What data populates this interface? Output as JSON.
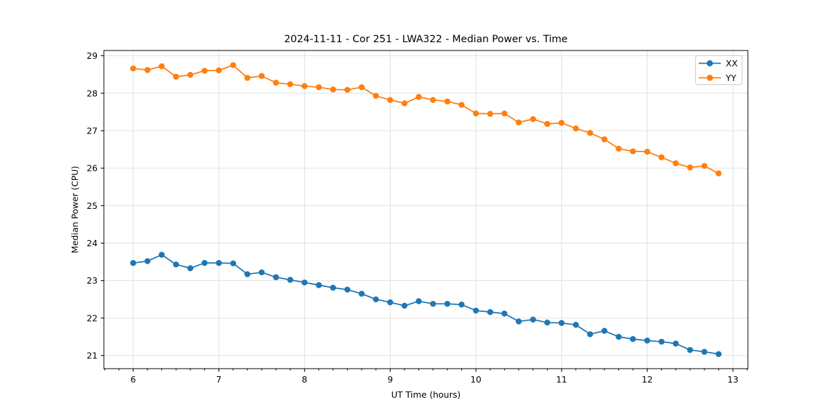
{
  "page": {
    "background": "#ffffff",
    "text_color": "#000000",
    "grid_color": "#e0e0e0",
    "spine_color": "#000000",
    "legend_border_color": "#cccccc"
  },
  "chart_data": {
    "type": "line",
    "title": "2024-11-11 - Cor 251 - LWA322 - Median Power vs. Time",
    "xlabel": "UT Time (hours)",
    "ylabel": "Median Power (CPU)",
    "xlim": [
      5.658,
      13.175
    ],
    "ylim": [
      20.65,
      29.14
    ],
    "x_ticks": [
      6,
      7,
      8,
      9,
      10,
      11,
      12,
      13
    ],
    "y_ticks": [
      21,
      22,
      23,
      24,
      25,
      26,
      27,
      28,
      29
    ],
    "x_minor_tick_interval_hours": 0.1667,
    "grid": "major-both",
    "legend_position": "upper-right",
    "legend_entries": [
      "XX",
      "YY"
    ],
    "marker": "circle",
    "x": [
      6.0,
      6.167,
      6.333,
      6.5,
      6.667,
      6.833,
      7.0,
      7.167,
      7.333,
      7.5,
      7.667,
      7.833,
      8.0,
      8.167,
      8.333,
      8.5,
      8.667,
      8.833,
      9.0,
      9.167,
      9.333,
      9.5,
      9.667,
      9.833,
      10.0,
      10.167,
      10.333,
      10.5,
      10.667,
      10.833,
      11.0,
      11.167,
      11.333,
      11.5,
      11.667,
      11.833,
      12.0,
      12.167,
      12.333,
      12.5,
      12.667,
      12.833
    ],
    "series": [
      {
        "name": "XX",
        "color": "#1f77b4",
        "values": [
          23.47,
          23.52,
          23.69,
          23.43,
          23.33,
          23.47,
          23.47,
          23.46,
          23.17,
          23.22,
          23.09,
          23.02,
          22.95,
          22.88,
          22.81,
          22.76,
          22.65,
          22.5,
          22.42,
          22.33,
          22.45,
          22.38,
          22.38,
          22.36,
          22.2,
          22.16,
          22.12,
          21.91,
          21.96,
          21.88,
          21.87,
          21.82,
          21.57,
          21.66,
          21.5,
          21.44,
          21.4,
          21.37,
          21.32,
          21.15,
          21.1,
          21.04
        ]
      },
      {
        "name": "YY",
        "color": "#ff7f0e",
        "values": [
          28.66,
          28.62,
          28.72,
          28.44,
          28.49,
          28.6,
          28.61,
          28.75,
          28.41,
          28.46,
          28.28,
          28.24,
          28.19,
          28.16,
          28.1,
          28.09,
          28.16,
          27.93,
          27.82,
          27.73,
          27.9,
          27.82,
          27.78,
          27.69,
          27.46,
          27.45,
          27.46,
          27.22,
          27.31,
          27.18,
          27.21,
          27.06,
          26.94,
          26.77,
          26.52,
          26.45,
          26.44,
          26.29,
          26.13,
          26.02,
          26.06,
          25.86
        ]
      }
    ]
  }
}
